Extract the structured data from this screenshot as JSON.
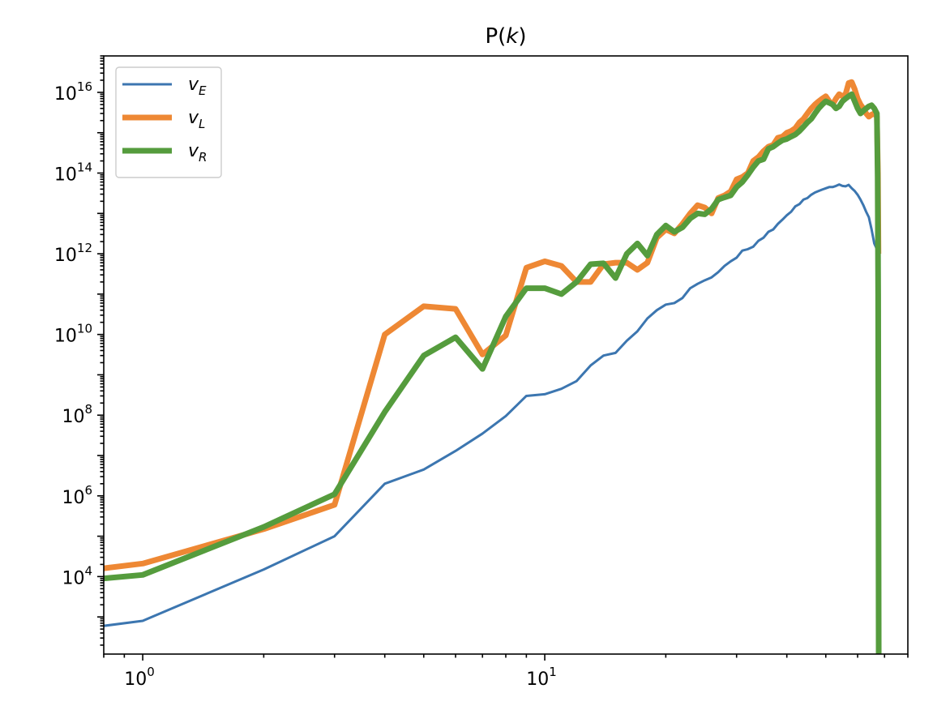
{
  "chart_data": {
    "type": "line",
    "title_prefix": "P(",
    "title_var": "k",
    "title_suffix": ")",
    "xscale": "log",
    "yscale": "log",
    "xlim": [
      0.8,
      80
    ],
    "ylim": [
      120,
      8e+16
    ],
    "grid": false,
    "legend_position": "top-left",
    "x_ticks": [
      {
        "base": "10",
        "exp": "0",
        "value": 1
      },
      {
        "base": "10",
        "exp": "1",
        "value": 10
      }
    ],
    "y_ticks": [
      {
        "base": "10",
        "exp": "4",
        "value": 10000.0
      },
      {
        "base": "10",
        "exp": "6",
        "value": 1000000.0
      },
      {
        "base": "10",
        "exp": "8",
        "value": 100000000.0
      },
      {
        "base": "10",
        "exp": "10",
        "value": 10000000000.0
      },
      {
        "base": "10",
        "exp": "12",
        "value": 1000000000000.0
      },
      {
        "base": "10",
        "exp": "14",
        "value": 100000000000000.0
      },
      {
        "base": "10",
        "exp": "16",
        "value": 1e+16
      }
    ],
    "series": [
      {
        "name": "v",
        "sub": "E",
        "color": "#3c76b0",
        "width": 3,
        "x": [
          0.8,
          1,
          2,
          3,
          4,
          5,
          6,
          7,
          8,
          9,
          10,
          11,
          12,
          13,
          14,
          15,
          16,
          17,
          18,
          19,
          20,
          21,
          22,
          23,
          24,
          25,
          26,
          27,
          28,
          29,
          30,
          31,
          32,
          33,
          34,
          35,
          36,
          37,
          38,
          39,
          40,
          41,
          42,
          43,
          44,
          45,
          46,
          47,
          48,
          49,
          50,
          51,
          52,
          53,
          54,
          55,
          56,
          57,
          58,
          59,
          60,
          61,
          62,
          63,
          64,
          65,
          66,
          67
        ],
        "y": [
          600,
          800,
          15000.0,
          100000.0,
          2000000.0,
          4500000.0,
          13000000.0,
          35000000.0,
          95000000.0,
          300000000.0,
          330000000.0,
          450000000.0,
          700000000.0,
          1700000000.0,
          3000000000.0,
          3500000000.0,
          7000000000.0,
          12000000000.0,
          25000000000.0,
          40000000000.0,
          55000000000.0,
          60000000000.0,
          80000000000.0,
          140000000000.0,
          180000000000.0,
          220000000000.0,
          260000000000.0,
          350000000000.0,
          500000000000.0,
          650000000000.0,
          800000000000.0,
          1200000000000.0,
          1300000000000.0,
          1500000000000.0,
          2100000000000.0,
          2500000000000.0,
          3500000000000.0,
          4000000000000.0,
          5500000000000.0,
          7000000000000.0,
          9000000000000.0,
          11000000000000.0,
          15000000000000.0,
          17000000000000.0,
          22000000000000.0,
          24000000000000.0,
          29000000000000.0,
          33000000000000.0,
          36000000000000.0,
          39000000000000.0,
          42000000000000.0,
          45000000000000.0,
          45000000000000.0,
          48000000000000.0,
          52000000000000.0,
          48000000000000.0,
          47000000000000.0,
          51000000000000.0,
          42000000000000.0,
          36000000000000.0,
          29000000000000.0,
          22000000000000.0,
          16000000000000.0,
          11000000000000.0,
          8000000000000.0,
          4000000000000.0,
          1800000000000.0,
          1300000000000.0
        ]
      },
      {
        "name": "v",
        "sub": "L",
        "color": "#ee8834",
        "width": 7,
        "x": [
          0.8,
          1,
          2,
          3,
          4,
          5,
          6,
          7,
          8,
          9,
          10,
          11,
          12,
          13,
          14,
          15,
          16,
          17,
          18,
          19,
          20,
          21,
          22,
          23,
          24,
          25,
          26,
          27,
          28,
          29,
          30,
          31,
          32,
          33,
          34,
          35,
          36,
          37,
          38,
          39,
          40,
          41,
          42,
          43,
          44,
          45,
          46,
          47,
          48,
          49,
          50,
          51,
          52,
          53,
          54,
          55,
          56,
          57,
          58,
          59,
          60,
          61,
          62,
          63,
          64,
          65,
          66,
          67,
          67.4,
          67.6
        ],
        "y": [
          16000.0,
          21000.0,
          150000.0,
          600000.0,
          10000000000.0,
          50000000000.0,
          43000000000.0,
          3200000000.0,
          9500000000.0,
          450000000000.0,
          650000000000.0,
          500000000000.0,
          200000000000.0,
          200000000000.0,
          550000000000.0,
          600000000000.0,
          600000000000.0,
          400000000000.0,
          600000000000.0,
          2500000000000.0,
          4000000000000.0,
          3200000000000.0,
          5500000000000.0,
          10000000000000.0,
          16000000000000.0,
          14000000000000.0,
          10000000000000.0,
          24000000000000.0,
          28000000000000.0,
          35000000000000.0,
          70000000000000.0,
          80000000000000.0,
          100000000000000.0,
          200000000000000.0,
          250000000000000.0,
          350000000000000.0,
          450000000000000.0,
          500000000000000.0,
          750000000000000.0,
          800000000000000.0,
          1000000000000000.0,
          1100000000000000.0,
          1300000000000000.0,
          1800000000000000.0,
          2200000000000000.0,
          3000000000000000.0,
          4000000000000000.0,
          5000000000000000.0,
          6000000000000000.0,
          7000000000000000.0,
          8000000000000000.0,
          6000000000000000.0,
          5000000000000000.0,
          7000000000000000.0,
          9000000000000000.0,
          8000000000000000.0,
          9000000000000000.0,
          1.7e+16,
          1.8e+16,
          1.2e+16,
          7000000000000000.0,
          5000000000000000.0,
          4000000000000000.0,
          3000000000000000.0,
          2500000000000000.0,
          2800000000000000.0,
          3000000000000000.0,
          2500000000000000.0,
          100000000000000.0,
          1000000000000.0
        ]
      },
      {
        "name": "v",
        "sub": "R",
        "color": "#559c3d",
        "width": 7,
        "x": [
          0.8,
          1,
          2,
          3,
          4,
          5,
          6,
          7,
          8,
          9,
          10,
          11,
          12,
          13,
          14,
          15,
          16,
          17,
          18,
          19,
          20,
          21,
          22,
          23,
          24,
          25,
          26,
          27,
          28,
          29,
          30,
          31,
          32,
          33,
          34,
          35,
          36,
          37,
          38,
          39,
          40,
          41,
          42,
          43,
          44,
          45,
          46,
          47,
          48,
          49,
          50,
          51,
          52,
          53,
          54,
          55,
          56,
          57,
          58,
          59,
          60,
          61,
          62,
          63,
          64,
          65,
          66,
          67,
          67.3,
          67.5,
          67.7
        ],
        "y": [
          9000.0,
          11000.0,
          170000.0,
          1100000.0,
          120000000.0,
          3000000000.0,
          8500000000.0,
          1400000000.0,
          28000000000.0,
          140000000000.0,
          140000000000.0,
          100000000000.0,
          200000000000.0,
          550000000000.0,
          580000000000.0,
          250000000000.0,
          1000000000000.0,
          1800000000000.0,
          900000000000.0,
          3000000000000.0,
          5000000000000.0,
          3500000000000.0,
          4500000000000.0,
          7500000000000.0,
          10000000000000.0,
          9500000000000.0,
          13000000000000.0,
          22000000000000.0,
          25000000000000.0,
          28000000000000.0,
          45000000000000.0,
          60000000000000.0,
          90000000000000.0,
          140000000000000.0,
          200000000000000.0,
          220000000000000.0,
          400000000000000.0,
          450000000000000.0,
          550000000000000.0,
          650000000000000.0,
          700000000000000.0,
          800000000000000.0,
          900000000000000.0,
          1100000000000000.0,
          1400000000000000.0,
          1800000000000000.0,
          2200000000000000.0,
          3000000000000000.0,
          4000000000000000.0,
          5000000000000000.0,
          6000000000000000.0,
          5500000000000000.0,
          5000000000000000.0,
          4000000000000000.0,
          4500000000000000.0,
          6000000000000000.0,
          7000000000000000.0,
          8000000000000000.0,
          9000000000000000.0,
          6000000000000000.0,
          4000000000000000.0,
          3000000000000000.0,
          3500000000000000.0,
          4000000000000000.0,
          4500000000000000.0,
          4800000000000000.0,
          4000000000000000.0,
          3000000000000000.0,
          80000000000000.0,
          100000000000.0,
          120
        ]
      }
    ]
  }
}
